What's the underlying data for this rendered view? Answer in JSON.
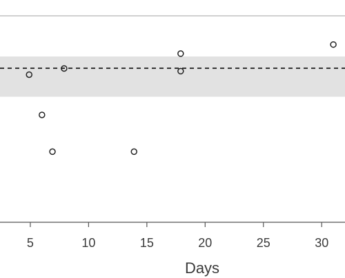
{
  "chart_data": {
    "type": "scatter",
    "title": "",
    "xlabel": "Days",
    "ylabel": "",
    "xlim": [
      2.4,
      32.0
    ],
    "ylim": [
      0,
      100
    ],
    "x_ticks": [
      5,
      10,
      15,
      20,
      25,
      30
    ],
    "x_tick_labels": [
      "5",
      "10",
      "15",
      "20",
      "25",
      "30"
    ],
    "reference_line": {
      "y": 74.6,
      "style": "dashed"
    },
    "reference_band": {
      "y_min": 60.8,
      "y_max": 80.3
    },
    "points": [
      {
        "x": 4.9,
        "y": 71.5
      },
      {
        "x": 6.0,
        "y": 52.0
      },
      {
        "x": 6.9,
        "y": 34.2
      },
      {
        "x": 7.9,
        "y": 74.5
      },
      {
        "x": 13.9,
        "y": 34.2
      },
      {
        "x": 17.9,
        "y": 81.7
      },
      {
        "x": 17.9,
        "y": 73.2
      },
      {
        "x": 31.0,
        "y": 86.1
      }
    ],
    "grid": false,
    "legend": "none",
    "colors": {
      "band": "#e2e2e2",
      "reference_line": "#222222",
      "points": "#222222",
      "axis": "#555555",
      "top_border": "#b5b5b5"
    }
  }
}
